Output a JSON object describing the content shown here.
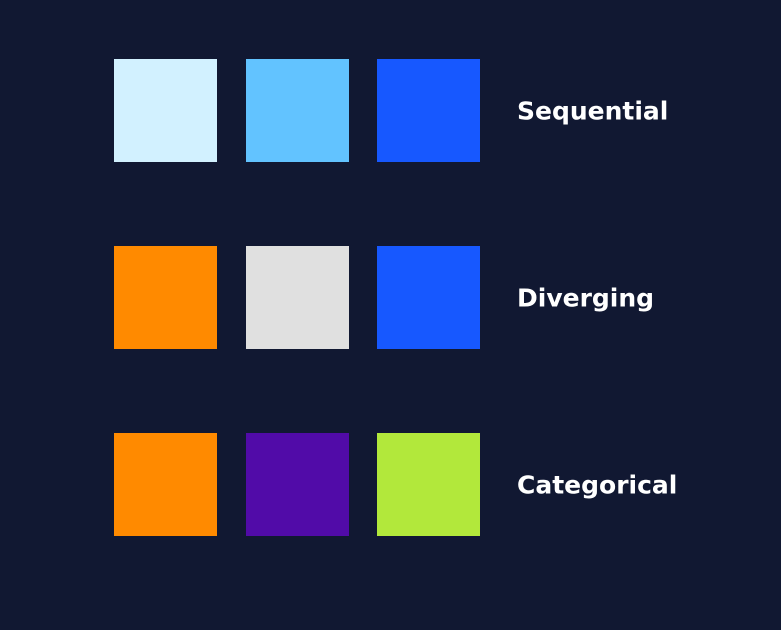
{
  "colors": {
    "background": "#111832",
    "label_text": "#ffffff"
  },
  "palettes": [
    {
      "name": "Sequential",
      "swatches": [
        "#d2f1ff",
        "#62c3ff",
        "#1758ff"
      ]
    },
    {
      "name": "Diverging",
      "swatches": [
        "#ff8a00",
        "#e0e0e0",
        "#1758ff"
      ]
    },
    {
      "name": "Categorical",
      "swatches": [
        "#ff8a00",
        "#510ba8",
        "#b2e83b"
      ]
    }
  ]
}
